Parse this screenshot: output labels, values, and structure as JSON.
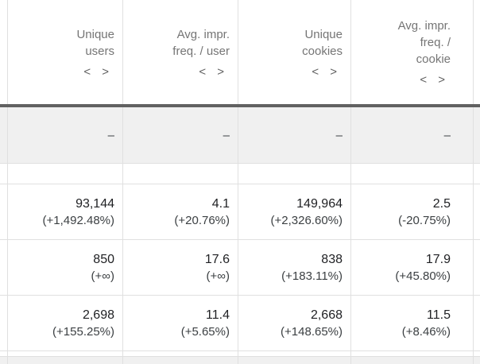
{
  "table": {
    "columns": [
      {
        "label": "Unique\nusers",
        "icons": "< >"
      },
      {
        "label": "Avg. impr.\nfreq. / user",
        "icons": "< >"
      },
      {
        "label": "Unique\ncookies",
        "icons": "< >"
      },
      {
        "label": "Avg. impr.\nfreq. /\ncookie",
        "icons": "< >"
      }
    ],
    "summary_row": {
      "values": [
        "–",
        "–",
        "–",
        "–"
      ]
    },
    "rows": [
      {
        "cells": [
          {
            "value": "93,144",
            "change": "(+1,492.48%)"
          },
          {
            "value": "4.1",
            "change": "(+20.76%)"
          },
          {
            "value": "149,964",
            "change": "(+2,326.60%)"
          },
          {
            "value": "2.5",
            "change": "(-20.75%)"
          }
        ]
      },
      {
        "cells": [
          {
            "value": "850",
            "change": "(+∞)"
          },
          {
            "value": "17.6",
            "change": "(+∞)"
          },
          {
            "value": "838",
            "change": "(+183.11%)"
          },
          {
            "value": "17.9",
            "change": "(+45.80%)"
          }
        ]
      },
      {
        "cells": [
          {
            "value": "2,698",
            "change": "(+155.25%)"
          },
          {
            "value": "11.4",
            "change": "(+5.65%)"
          },
          {
            "value": "2,668",
            "change": "(+148.65%)"
          },
          {
            "value": "11.5",
            "change": "(+8.46%)"
          }
        ]
      }
    ]
  },
  "colors": {
    "header_text": "#757575",
    "value_text": "#202124",
    "header_divider": "#616161",
    "grid_line": "#e0e0e0",
    "summary_row_bg": "#f0f0f0"
  }
}
